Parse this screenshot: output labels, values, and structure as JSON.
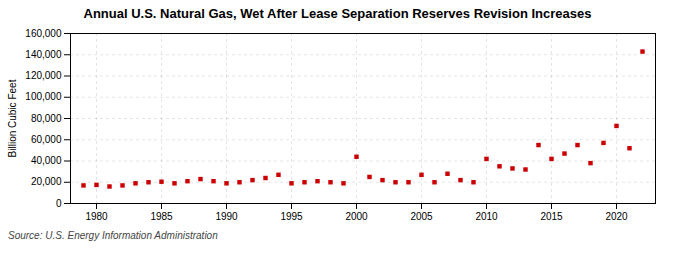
{
  "chart_data": {
    "type": "scatter",
    "title": "Annual U.S. Natural Gas, Wet After Lease Separation Reserves Revision Increases",
    "y_label": "Billion Cubic Feet",
    "annotations": [
      "Source: U.S. Energy Information Administration"
    ],
    "x": [
      1979,
      1980,
      1981,
      1982,
      1983,
      1984,
      1985,
      1986,
      1987,
      1988,
      1989,
      1990,
      1991,
      1992,
      1993,
      1994,
      1995,
      1996,
      1997,
      1998,
      1999,
      2000,
      2001,
      2002,
      2003,
      2004,
      2005,
      2006,
      2007,
      2008,
      2009,
      2010,
      2011,
      2012,
      2013,
      2014,
      2015,
      2016,
      2017,
      2018,
      2019,
      2020,
      2021,
      2022
    ],
    "values": [
      17000,
      17500,
      16000,
      17000,
      19000,
      20000,
      20500,
      19000,
      21000,
      23000,
      21000,
      19000,
      20000,
      22000,
      24000,
      27000,
      19000,
      20000,
      21000,
      20000,
      19000,
      44000,
      25000,
      22000,
      20000,
      20000,
      27000,
      20000,
      28000,
      22000,
      20000,
      42000,
      35000,
      33000,
      32000,
      55000,
      42000,
      47000,
      55000,
      38000,
      57000,
      73000,
      52000,
      143000
    ],
    "color": "#cc0000",
    "marker": "square",
    "xlim": [
      1978,
      2023
    ],
    "xticks": [
      1980,
      1985,
      1990,
      1995,
      2000,
      2005,
      2010,
      2015,
      2020
    ],
    "ylim": [
      0,
      160000
    ],
    "yticks": [
      0,
      {
        "value": 20000,
        "label": "20,000"
      },
      {
        "value": 40000,
        "label": "40,000"
      },
      {
        "value": 60000,
        "label": "60,000"
      },
      {
        "value": 80000,
        "label": "80,000"
      },
      {
        "value": 100000,
        "label": "100,000"
      },
      {
        "value": 120000,
        "label": "120,000"
      },
      {
        "value": 140000,
        "label": "140,000"
      },
      {
        "value": 160000,
        "label": "160,000"
      }
    ],
    "grid": true
  }
}
